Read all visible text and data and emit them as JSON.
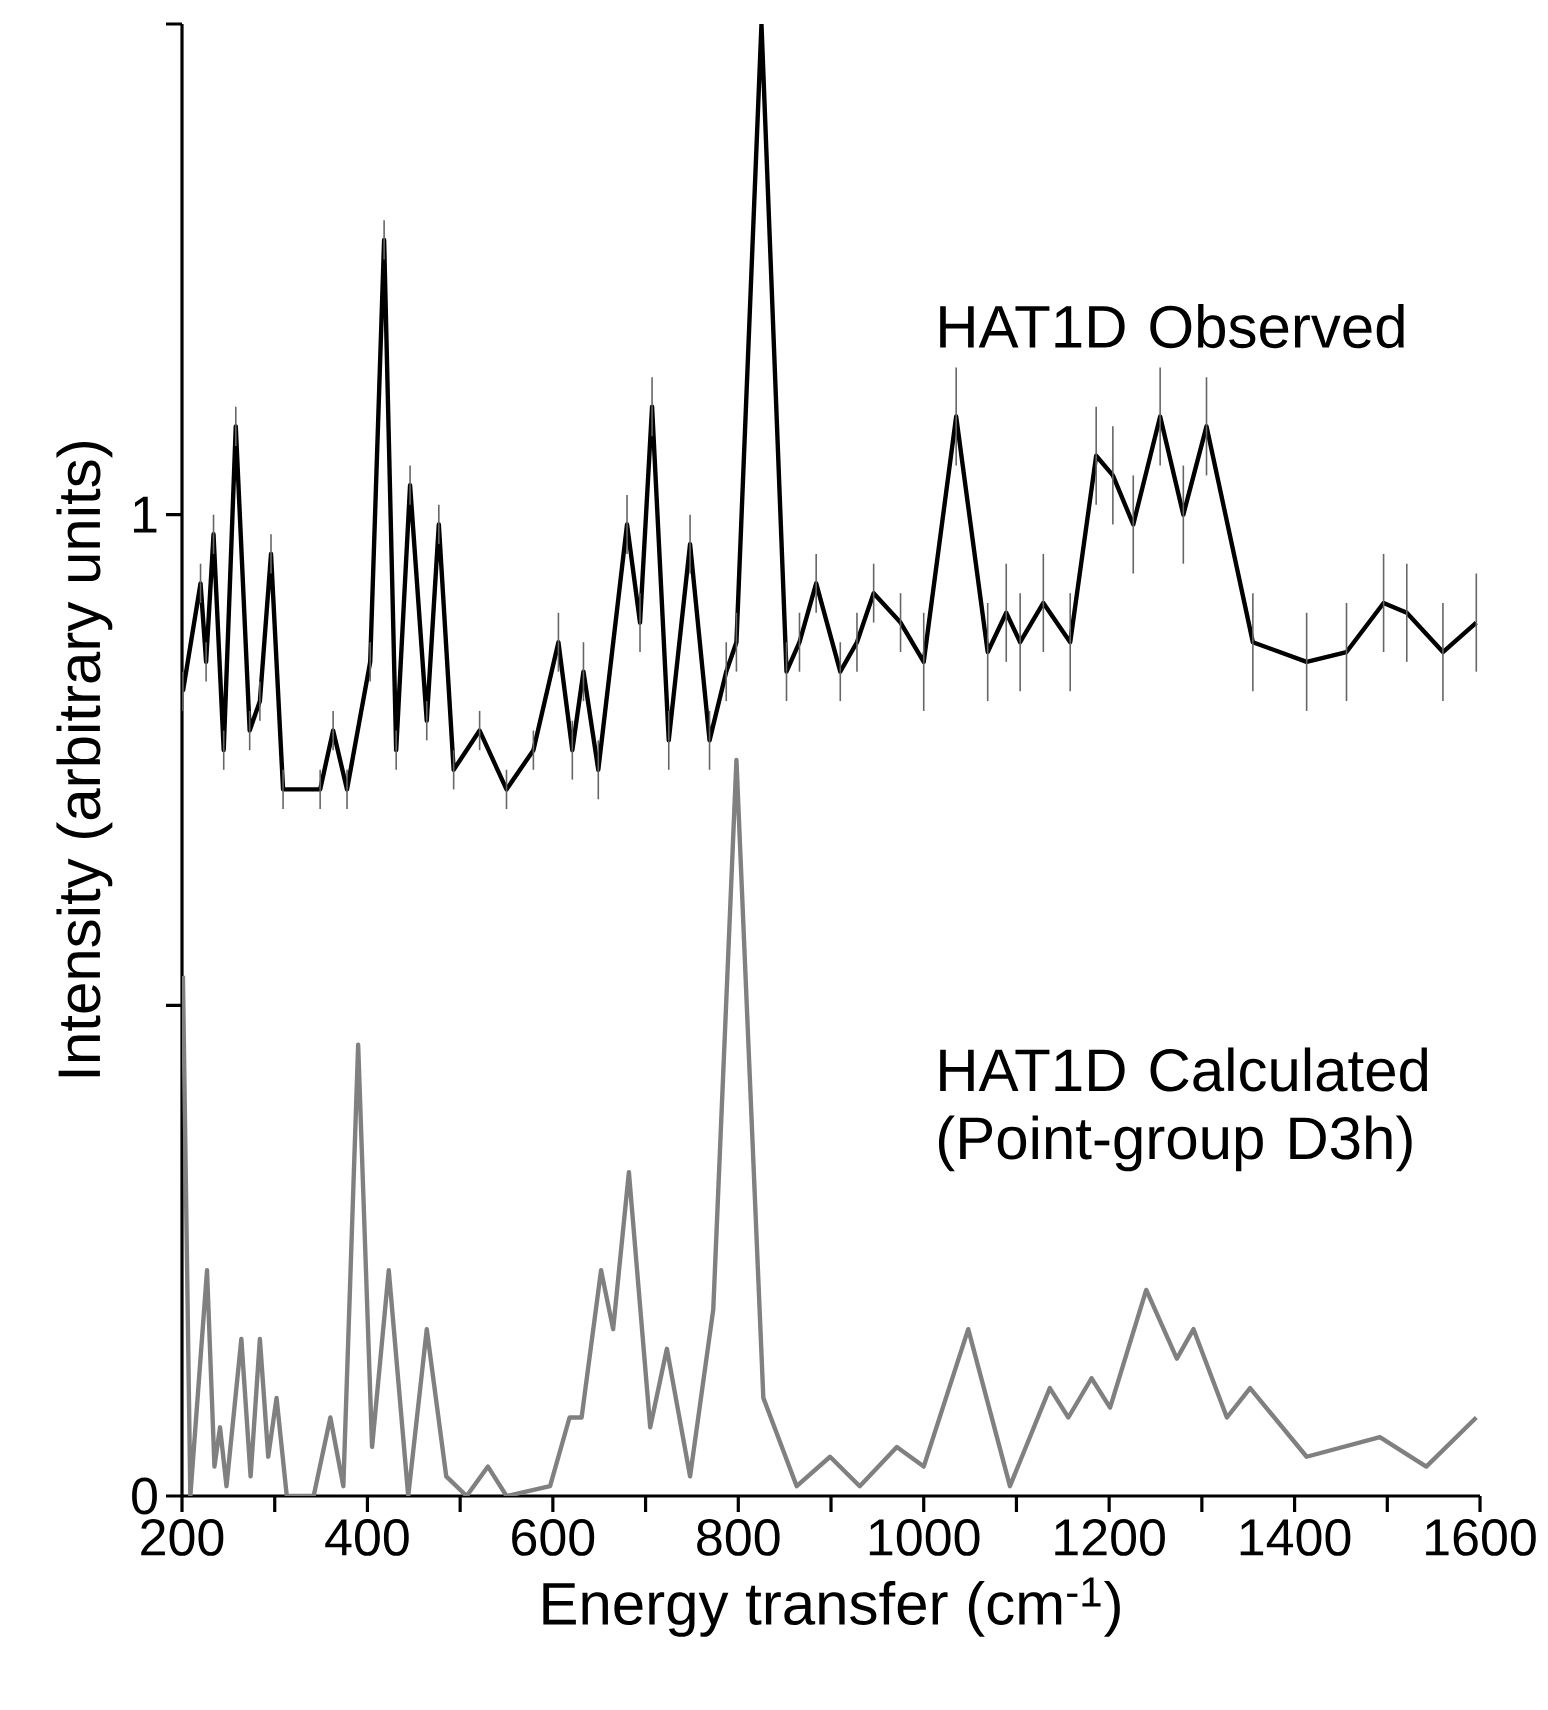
{
  "chart_data": {
    "type": "line",
    "xlabel": "Energy transfer (cm$^{-1}$)",
    "ylabel": "Intensity (arbitrary units)",
    "xlim": [
      200,
      1600
    ],
    "ylim": [
      0,
      1.5
    ],
    "xticks": [
      200,
      {
        "value": 300,
        "label": null
      },
      400,
      {
        "value": 500,
        "label": null
      },
      600,
      {
        "value": 700,
        "label": null
      },
      800,
      {
        "value": 900,
        "label": null
      },
      1000,
      {
        "value": 1100,
        "label": null
      },
      1200,
      {
        "value": 1300,
        "label": null
      },
      1400,
      {
        "value": 1500,
        "label": null
      },
      1600
    ],
    "yticks": [
      0,
      {
        "value": 0.5,
        "label": null
      },
      1,
      {
        "value": 1.5,
        "label": null
      }
    ],
    "marker": "none",
    "line_style": "solid",
    "series": [
      {
        "name": "HAT1D Observed",
        "color": "#000000",
        "x": [
          201,
          220,
          226,
          234,
          245,
          258,
          273,
          284,
          296,
          309,
          349,
          363,
          378,
          403,
          418,
          431,
          446,
          464,
          477,
          493,
          521,
          550,
          579,
          606,
          621,
          633,
          649,
          680,
          694,
          707,
          725,
          748,
          769,
          787,
          798,
          825,
          852,
          866,
          884,
          910,
          928,
          946,
          975,
          1000,
          1035,
          1069,
          1089,
          1104,
          1129,
          1158,
          1186,
          1204,
          1226,
          1255,
          1280,
          1305,
          1355,
          1413,
          1456,
          1496,
          1521,
          1560,
          1596
        ],
        "values": [
          0.82,
          0.93,
          0.85,
          0.98,
          0.76,
          1.09,
          0.78,
          0.81,
          0.96,
          0.72,
          0.72,
          0.78,
          0.72,
          0.85,
          1.28,
          0.76,
          1.03,
          0.79,
          0.99,
          0.74,
          0.78,
          0.72,
          0.76,
          0.87,
          0.76,
          0.84,
          0.74,
          0.99,
          0.89,
          1.11,
          0.77,
          0.97,
          0.77,
          0.84,
          0.87,
          1.5,
          0.84,
          0.87,
          0.93,
          0.84,
          0.87,
          0.92,
          0.89,
          0.85,
          1.1,
          0.86,
          0.9,
          0.87,
          0.91,
          0.87,
          1.06,
          1.04,
          0.99,
          1.1,
          1.0,
          1.09,
          0.87,
          0.85,
          0.86,
          0.91,
          0.9,
          0.86,
          0.89
        ],
        "errors": [
          0.02,
          0.02,
          0.02,
          0.02,
          0.02,
          0.02,
          0.02,
          0.02,
          0.02,
          0.02,
          0.02,
          0.02,
          0.02,
          0.02,
          0.02,
          0.02,
          0.02,
          0.02,
          0.02,
          0.02,
          0.02,
          0.02,
          0.02,
          0.03,
          0.03,
          0.03,
          0.03,
          0.03,
          0.03,
          0.03,
          0.03,
          0.03,
          0.03,
          0.03,
          0.03,
          null,
          0.03,
          0.03,
          0.03,
          0.03,
          0.03,
          0.03,
          0.03,
          0.05,
          0.05,
          0.05,
          0.05,
          0.05,
          0.05,
          0.05,
          0.05,
          0.05,
          0.05,
          0.05,
          0.05,
          0.05,
          0.05,
          0.05,
          0.05,
          0.05,
          0.05,
          0.05,
          0.05
        ]
      },
      {
        "name": "HAT1D Calculated (Point-group D3h)",
        "color": "#808080",
        "x": [
          201,
          209,
          227,
          235,
          241,
          248,
          264,
          274,
          284,
          293,
          302,
          313,
          342,
          360,
          374,
          390,
          405,
          423,
          444,
          464,
          485,
          507,
          530,
          550,
          597,
          618,
          631,
          652,
          665,
          682,
          705,
          723,
          748,
          773,
          798,
          827,
          863,
          899,
          931,
          971,
          1000,
          1048,
          1093,
          1136,
          1156,
          1181,
          1201,
          1240,
          1273,
          1291,
          1327,
          1352,
          1413,
          1492,
          1542,
          1596
        ],
        "values": [
          0.53,
          0.0,
          0.23,
          0.03,
          0.07,
          0.01,
          0.16,
          0.02,
          0.16,
          0.04,
          0.1,
          0.0,
          0.0,
          0.08,
          0.01,
          0.46,
          0.05,
          0.23,
          0.0,
          0.17,
          0.02,
          0.0,
          0.03,
          0.0,
          0.01,
          0.08,
          0.08,
          0.23,
          0.17,
          0.33,
          0.07,
          0.15,
          0.02,
          0.19,
          0.75,
          0.1,
          0.01,
          0.04,
          0.01,
          0.05,
          0.03,
          0.17,
          0.01,
          0.11,
          0.08,
          0.12,
          0.09,
          0.21,
          0.14,
          0.17,
          0.08,
          0.11,
          0.04,
          0.06,
          0.03,
          0.08
        ]
      }
    ]
  }
}
